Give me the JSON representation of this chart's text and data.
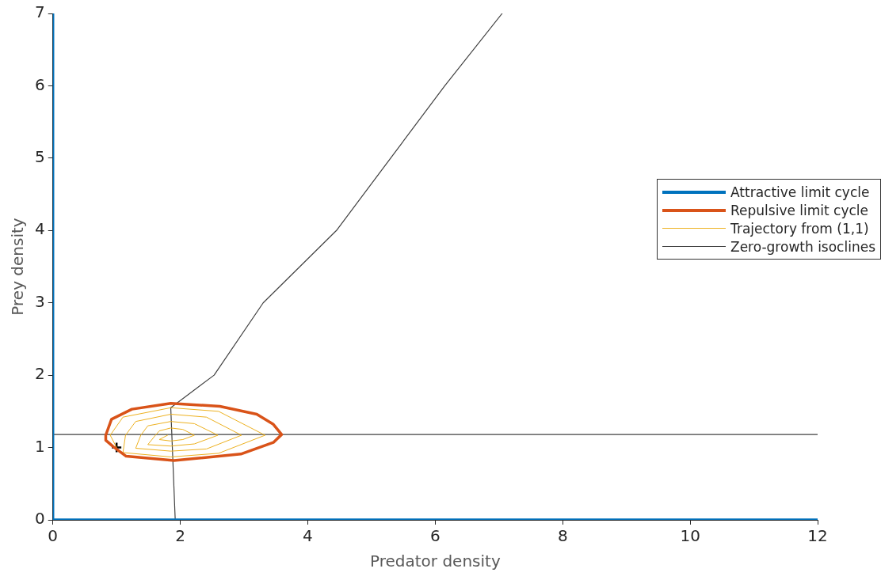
{
  "chart_data": {
    "type": "line",
    "xlabel": "Predator density",
    "ylabel": "Prey density",
    "xlim": [
      0,
      12
    ],
    "ylim": [
      0,
      7
    ],
    "xticks": [
      0,
      2,
      4,
      6,
      8,
      10,
      12
    ],
    "yticks": [
      0,
      1,
      2,
      3,
      4,
      5,
      6,
      7
    ],
    "grid": false,
    "legend": "right",
    "marker": "none",
    "series": [
      {
        "name": "Attractive limit cycle",
        "color": "#0072bd",
        "x": [
          0,
          0,
          12
        ],
        "values": [
          7,
          0,
          0
        ]
      },
      {
        "name": "Repulsive limit cycle",
        "color": "#d95319",
        "x": [
          0.83,
          0.92,
          1.24,
          1.85,
          2.62,
          3.2,
          3.46,
          3.59,
          3.46,
          2.95,
          1.9,
          1.15,
          0.95,
          0.83,
          0.83
        ],
        "values": [
          1.17,
          1.39,
          1.53,
          1.61,
          1.57,
          1.46,
          1.32,
          1.18,
          1.07,
          0.91,
          0.82,
          0.88,
          1.01,
          1.1,
          1.16
        ]
      },
      {
        "name": "Trajectory from (1,1)",
        "color": "#edb120",
        "x": [
          1,
          0.9,
          1.1,
          1.85,
          2.6,
          3.33,
          2.6,
          1.85,
          1.1,
          1.14,
          1.3,
          1.85,
          2.41,
          2.96,
          2.41,
          1.85,
          1.3,
          1.38,
          1.49,
          1.85,
          2.22,
          2.59,
          2.22,
          1.85,
          1.49,
          1.61,
          1.67,
          1.85,
          2.04,
          2.22,
          2.04,
          1.85,
          1.67,
          1.8
        ],
        "values": [
          1,
          1.17,
          1.42,
          1.55,
          1.5,
          1.17,
          0.92,
          0.87,
          0.93,
          1.17,
          1.36,
          1.46,
          1.42,
          1.17,
          0.98,
          0.95,
          0.99,
          1.17,
          1.3,
          1.36,
          1.33,
          1.17,
          1.05,
          1.02,
          1.04,
          1.17,
          1.23,
          1.27,
          1.25,
          1.17,
          1.11,
          1.09,
          1.11,
          1.17
        ]
      },
      {
        "name": "Zero-growth isoclines",
        "color": "#404040",
        "x": [
          0,
          12
        ],
        "values": [
          1.18,
          1.18
        ]
      },
      {
        "color": "#404040",
        "x": [
          1.92,
          1.85,
          2.53,
          3.3,
          4.45,
          5.3,
          6.15,
          7.05
        ],
        "values": [
          0,
          1.55,
          2,
          3,
          4,
          5,
          6,
          7
        ]
      },
      {
        "type": "scatter",
        "color": "#000000",
        "marker": "cross",
        "x": [
          1
        ],
        "values": [
          1
        ]
      }
    ]
  }
}
